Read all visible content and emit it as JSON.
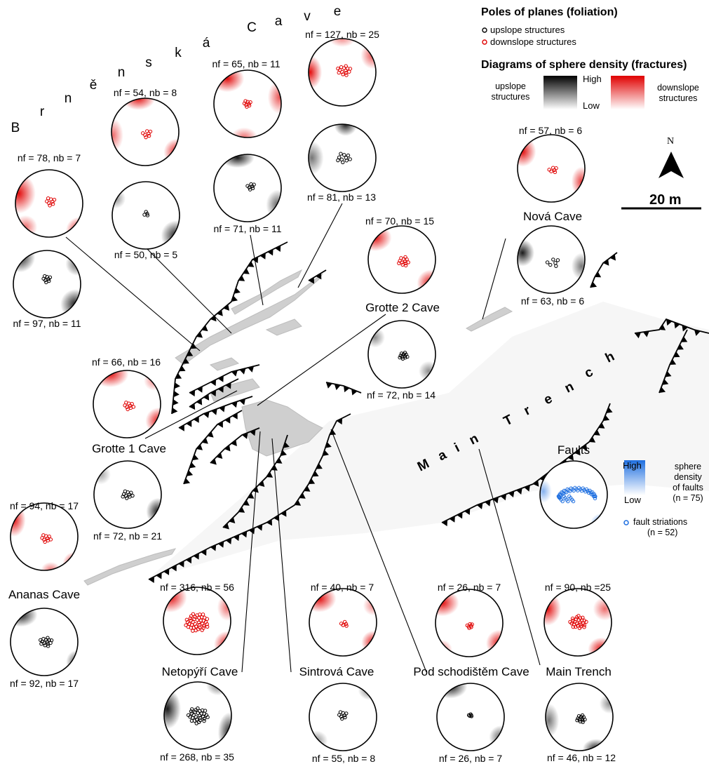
{
  "legend": {
    "foliation_title": "Poles of planes (foliation)",
    "upslope_structures": "upslope structures",
    "downslope_structures": "downslope structures",
    "fractures_title": "Diagrams of sphere density (fractures)",
    "upslope_line1": "upslope",
    "upslope_line2": "structures",
    "downslope_line1": "downslope",
    "downslope_line2": "structures",
    "high": "High",
    "low": "Low",
    "north": "N",
    "scale": "20 m",
    "faults_title": "Faults",
    "faults_high": "High",
    "faults_low": "Low",
    "faults_density_1": "sphere",
    "faults_density_2": "density",
    "faults_density_3": "of faults",
    "faults_density_4": "(n = 75)",
    "fault_striations_1": "fault striations",
    "fault_striations_2": "(n = 52)"
  },
  "colors": {
    "upslope": "#000000",
    "downslope": "#e00000",
    "faults": "#1e6fe0",
    "cave": "#cccccc"
  },
  "curved_labels": {
    "brnenska": [
      "B",
      "r",
      "n",
      "ě",
      "n",
      "s",
      "k",
      "á",
      "C",
      "a",
      "v",
      "e"
    ],
    "main_trench": [
      "M",
      "a",
      "i",
      "n",
      "T",
      "r",
      "e",
      "n",
      "c",
      "h"
    ]
  },
  "caves": {
    "brnenska_1": {
      "top": "nf = 54, nb = 8",
      "bottom": "nf = 50, nb = 5"
    },
    "brnenska_2": {
      "top": "nf = 65, nb = 11",
      "bottom": "nf = 71, nb = 11"
    },
    "brnenska_3": {
      "top": "nf = 127, nb = 25",
      "bottom": "nf = 81, nb = 13"
    },
    "brnenska_0": {
      "top": "nf = 78, nb = 7",
      "bottom": "nf = 97, nb = 11"
    },
    "nova": {
      "name": "Nová Cave",
      "top": "nf = 57, nb = 6",
      "bottom": "nf = 63, nb = 6"
    },
    "grotte2": {
      "name": "Grotte 2 Cave",
      "top": "nf = 70, nb = 15",
      "bottom": "nf = 72, nb = 14"
    },
    "grotte1": {
      "name": "Grotte 1 Cave",
      "top": "nf = 66, nb = 16",
      "bottom": "nf = 72, nb = 21"
    },
    "ananas": {
      "name": "Ananas Cave",
      "top": "nf = 94, nb = 17",
      "bottom": "nf = 92, nb = 17"
    },
    "netopyri": {
      "name": "Netopýří Cave",
      "top": "nf = 316, nb = 56",
      "bottom": "nf = 268, nb = 35"
    },
    "sintrova": {
      "name": "Sintrová Cave",
      "top": "nf = 40, nb = 7",
      "bottom": "nf = 55, nb = 8"
    },
    "podschod": {
      "name": "Pod schodištěm Cave",
      "top": "nf = 26, nb = 7",
      "bottom": "nf = 26, nb = 7"
    },
    "maintrench": {
      "name": "Main Trench",
      "top": "nf = 90, nb =25",
      "bottom": "nf = 46, nb = 12"
    }
  }
}
